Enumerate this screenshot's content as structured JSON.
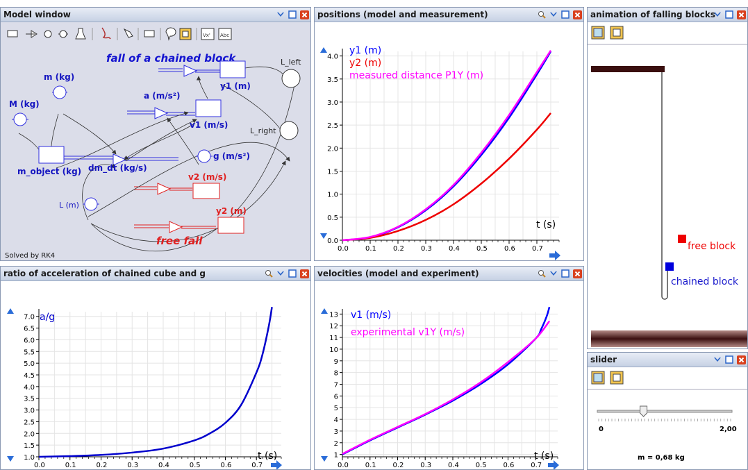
{
  "windows": {
    "model": {
      "title": "Model window"
    },
    "positions": {
      "title": "positions (model and measurement)"
    },
    "animation": {
      "title": "animation of falling blocks"
    },
    "ratio": {
      "title": "ratio of acceleration of chained cube and g"
    },
    "velocities": {
      "title": "velocities (model and experiment)"
    },
    "slider": {
      "title": "slider"
    }
  },
  "model": {
    "diagram_title": "fall of a chained block",
    "free_fall": "free fall",
    "solver": "Solved by RK4",
    "nodes": {
      "y1": "y1 (m)",
      "L_left": "L_left",
      "m": "m (kg)",
      "a": "a (m/s²)",
      "M": "M (kg)",
      "v1": "v1 (m/s)",
      "L_right": "L_right",
      "m_object": "m_object (kg)",
      "dm_dt": "dm_dt (kg/s)",
      "g": "g (m/s²)",
      "v2": "v2 (m/s)",
      "L": "L (m)",
      "y2": "y2 (m)"
    }
  },
  "animation": {
    "free_block": "free block",
    "chained_block": "chained block"
  },
  "slider": {
    "min_label": "0",
    "max_label": "2,00",
    "value_text": "m = 0,68 kg",
    "value": 0.68,
    "min": 0,
    "max": 2.0
  },
  "colors": {
    "blue": "#0000ff",
    "red": "#ee0000",
    "magenta": "#ff00ff",
    "navy": "#0000cc"
  },
  "chart_data": [
    {
      "type": "line",
      "title": "positions (model and measurement)",
      "xlabel": "t (s)",
      "xlim": [
        0,
        0.78
      ],
      "ylim": [
        0,
        4.1
      ],
      "xticks": [
        "0.0",
        "0.1",
        "0.2",
        "0.3",
        "0.4",
        "0.5",
        "0.6",
        "0.7"
      ],
      "yticks": [
        "0.0",
        "0.5",
        "1.0",
        "1.5",
        "2.0",
        "2.5",
        "3.0",
        "3.5",
        "4.0"
      ],
      "series": [
        {
          "name": "y1 (m)",
          "color": "#0000ff",
          "x": [
            0,
            0.1,
            0.2,
            0.3,
            0.4,
            0.5,
            0.6,
            0.7,
            0.75
          ],
          "y": [
            0,
            0.06,
            0.28,
            0.65,
            1.17,
            1.85,
            2.66,
            3.6,
            4.1
          ]
        },
        {
          "name": "y2 (m)",
          "color": "#ee0000",
          "x": [
            0,
            0.1,
            0.2,
            0.3,
            0.4,
            0.5,
            0.6,
            0.7,
            0.75
          ],
          "y": [
            0,
            0.05,
            0.2,
            0.44,
            0.78,
            1.23,
            1.77,
            2.4,
            2.76
          ]
        },
        {
          "name": "measured distance P1Y (m)",
          "color": "#ff00ff",
          "x": [
            0,
            0.1,
            0.2,
            0.3,
            0.4,
            0.5,
            0.6,
            0.7,
            0.75
          ],
          "y": [
            0,
            0.07,
            0.29,
            0.67,
            1.2,
            1.9,
            2.72,
            3.65,
            4.12
          ]
        }
      ]
    },
    {
      "type": "line",
      "title": "ratio of acceleration of chained cube and g",
      "xlabel": "t (s)",
      "xlim": [
        0,
        0.78
      ],
      "ylim": [
        1.0,
        7.2
      ],
      "xticks": [
        "0.0",
        "0.1",
        "0.2",
        "0.3",
        "0.4",
        "0.5",
        "0.6",
        "0.7"
      ],
      "yticks": [
        "1.0",
        "1.5",
        "2.0",
        "2.5",
        "3.0",
        "3.5",
        "4.0",
        "4.5",
        "5.0",
        "5.5",
        "6.0",
        "6.5",
        "7.0"
      ],
      "series": [
        {
          "name": "a/g",
          "color": "#0000cc",
          "x": [
            0,
            0.1,
            0.2,
            0.3,
            0.4,
            0.5,
            0.55,
            0.6,
            0.65,
            0.7,
            0.72,
            0.74,
            0.75
          ],
          "y": [
            1.0,
            1.03,
            1.08,
            1.18,
            1.35,
            1.7,
            2.0,
            2.45,
            3.2,
            4.6,
            5.4,
            6.6,
            7.4
          ]
        }
      ]
    },
    {
      "type": "line",
      "title": "velocities (model and experiment)",
      "xlabel": "t (s)",
      "xlim": [
        0,
        0.78
      ],
      "ylim": [
        0.8,
        13.2
      ],
      "xticks": [
        "0.0",
        "0.1",
        "0.2",
        "0.3",
        "0.4",
        "0.5",
        "0.6",
        "0.7"
      ],
      "yticks": [
        "1",
        "2",
        "3",
        "4",
        "5",
        "6",
        "7",
        "8",
        "9",
        "10",
        "11",
        "12",
        "13"
      ],
      "series": [
        {
          "name": "v1 (m/s)",
          "color": "#0000ff",
          "x": [
            0,
            0.1,
            0.2,
            0.3,
            0.4,
            0.5,
            0.6,
            0.7,
            0.72,
            0.74,
            0.75
          ],
          "y": [
            1.0,
            2.2,
            3.3,
            4.4,
            5.6,
            7.0,
            8.7,
            10.9,
            11.7,
            12.8,
            13.6
          ]
        },
        {
          "name": "experimental v1Y (m/s)",
          "color": "#ff00ff",
          "x": [
            0,
            0.1,
            0.2,
            0.3,
            0.4,
            0.5,
            0.6,
            0.7,
            0.75
          ],
          "y": [
            1.05,
            2.25,
            3.35,
            4.45,
            5.7,
            7.15,
            8.9,
            10.9,
            12.4
          ]
        }
      ]
    }
  ]
}
